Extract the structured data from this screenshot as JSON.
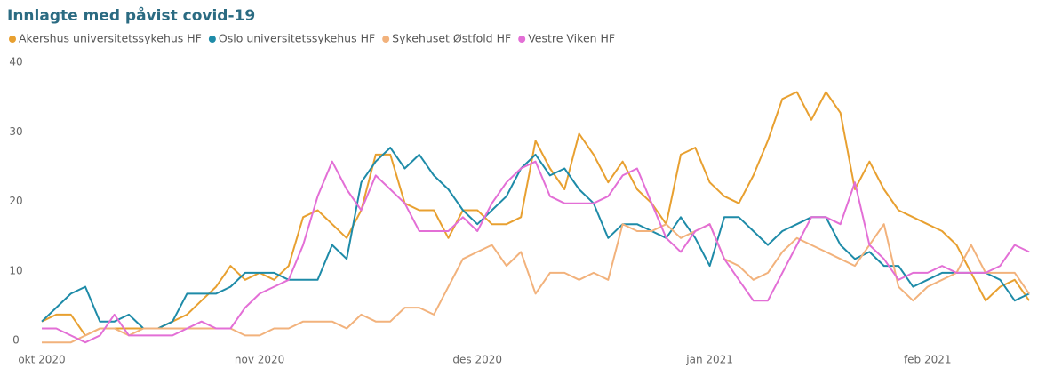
{
  "chart_data": {
    "type": "line",
    "title": "Innlagte med påvist covid-19",
    "categories": [
      "okt 2020",
      null,
      null,
      null,
      null,
      null,
      null,
      null,
      null,
      null,
      null,
      null,
      null,
      null,
      null,
      "nov 2020",
      null,
      null,
      null,
      null,
      null,
      null,
      null,
      null,
      null,
      null,
      null,
      null,
      null,
      null,
      "des 2020",
      null,
      null,
      null,
      null,
      null,
      null,
      null,
      null,
      null,
      null,
      null,
      null,
      null,
      null,
      null,
      "jan 2021",
      null,
      null,
      null,
      null,
      null,
      null,
      null,
      null,
      null,
      null,
      null,
      null,
      null,
      null,
      "feb 2021",
      null,
      null,
      null,
      null,
      null,
      null,
      null
    ],
    "series": [
      {
        "name": "Akershus universitetssykehus HF",
        "color": "#e8a030",
        "values": [
          4,
          5,
          5,
          2,
          3,
          3,
          3,
          3,
          3,
          4,
          5,
          7,
          9,
          12,
          10,
          11,
          10,
          12,
          19,
          20,
          18,
          16,
          20,
          28,
          28,
          21,
          20,
          20,
          16,
          20,
          20,
          18,
          18,
          19,
          30,
          26,
          23,
          31,
          28,
          24,
          27,
          23,
          21,
          18,
          28,
          29,
          24,
          22,
          21,
          25,
          30,
          36,
          37,
          33,
          37,
          34,
          23,
          27,
          23,
          20,
          19,
          18,
          17,
          15,
          11,
          7,
          9,
          10,
          7
        ]
      },
      {
        "name": "Oslo universitetssykehus HF",
        "color": "#1e8ba8",
        "values": [
          4,
          6,
          8,
          9,
          4,
          4,
          5,
          3,
          3,
          4,
          8,
          8,
          8,
          9,
          11,
          11,
          11,
          10,
          10,
          10,
          15,
          13,
          24,
          27,
          29,
          26,
          28,
          25,
          23,
          20,
          18,
          20,
          22,
          26,
          28,
          25,
          26,
          23,
          21,
          16,
          18,
          18,
          17,
          16,
          19,
          16,
          12,
          19,
          19,
          17,
          15,
          17,
          18,
          19,
          19,
          15,
          13,
          14,
          12,
          12,
          9,
          10,
          11,
          11,
          11,
          11,
          10,
          7,
          8
        ]
      },
      {
        "name": "Sykehuset Østfold HF",
        "color": "#f2b27c",
        "values": [
          1,
          1,
          1,
          2,
          3,
          3,
          2,
          3,
          3,
          3,
          3,
          3,
          3,
          3,
          2,
          2,
          3,
          3,
          4,
          4,
          4,
          3,
          5,
          4,
          4,
          6,
          6,
          5,
          9,
          13,
          14,
          15,
          12,
          14,
          8,
          11,
          11,
          10,
          11,
          10,
          18,
          17,
          17,
          18,
          16,
          17,
          18,
          13,
          12,
          10,
          11,
          14,
          16,
          15,
          14,
          13,
          12,
          15,
          18,
          9,
          7,
          9,
          10,
          11,
          15,
          11,
          11,
          11,
          8
        ]
      },
      {
        "name": "Vestre Viken HF",
        "color": "#e36fd6",
        "values": [
          3,
          3,
          2,
          1,
          2,
          5,
          2,
          2,
          2,
          2,
          3,
          4,
          3,
          3,
          6,
          8,
          9,
          10,
          15,
          22,
          27,
          23,
          20,
          25,
          23,
          21,
          17,
          17,
          17,
          19,
          17,
          21,
          24,
          26,
          27,
          22,
          21,
          21,
          21,
          22,
          25,
          26,
          21,
          16,
          14,
          17,
          18,
          13,
          10,
          7,
          7,
          11,
          15,
          19,
          19,
          18,
          24,
          15,
          13,
          10,
          11,
          11,
          12,
          11,
          11,
          11,
          12,
          15,
          14
        ]
      }
    ],
    "ylim": [
      0,
      40
    ],
    "yticks": [
      0,
      10,
      20,
      30,
      40
    ],
    "grid": false
  }
}
